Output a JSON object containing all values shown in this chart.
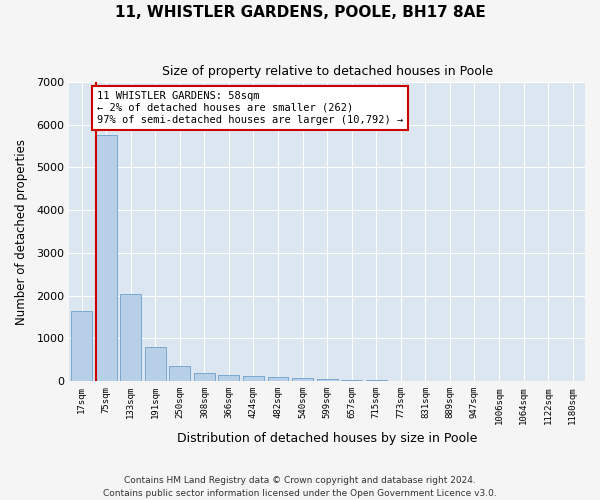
{
  "title": "11, WHISTLER GARDENS, POOLE, BH17 8AE",
  "subtitle": "Size of property relative to detached houses in Poole",
  "xlabel": "Distribution of detached houses by size in Poole",
  "ylabel": "Number of detached properties",
  "annotation_lines": [
    "11 WHISTLER GARDENS: 58sqm",
    "← 2% of detached houses are smaller (262)",
    "97% of semi-detached houses are larger (10,792) →"
  ],
  "footer_lines": [
    "Contains HM Land Registry data © Crown copyright and database right 2024.",
    "Contains public sector information licensed under the Open Government Licence v3.0."
  ],
  "bar_categories": [
    "17sqm",
    "75sqm",
    "133sqm",
    "191sqm",
    "250sqm",
    "308sqm",
    "366sqm",
    "424sqm",
    "482sqm",
    "540sqm",
    "599sqm",
    "657sqm",
    "715sqm",
    "773sqm",
    "831sqm",
    "889sqm",
    "947sqm",
    "1006sqm",
    "1064sqm",
    "1122sqm",
    "1180sqm"
  ],
  "bar_values": [
    1650,
    5750,
    2050,
    800,
    350,
    200,
    150,
    110,
    95,
    80,
    60,
    30,
    20,
    10,
    5,
    5,
    3,
    3,
    2,
    2,
    1
  ],
  "bar_color": "#b8cfe8",
  "bar_edgecolor": "#7aa8d0",
  "property_line_color": "#cc0000",
  "ylim": [
    0,
    7000
  ],
  "yticks": [
    0,
    1000,
    2000,
    3000,
    4000,
    5000,
    6000,
    7000
  ],
  "annotation_box_color": "#cc0000",
  "plot_bg_color": "#dce6f0",
  "fig_bg_color": "#f5f5f5",
  "grid_color": "#ffffff"
}
